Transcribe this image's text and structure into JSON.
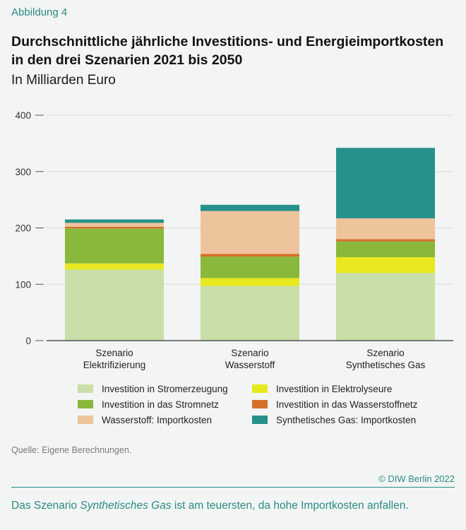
{
  "figure_label": "Abbildung 4",
  "title": "Durchschnittliche jährliche Investitions- und Energieimportkosten in den drei Szenarien 2021 bis 2050",
  "subtitle": "In Milliarden Euro",
  "source": "Quelle: Eigene Berechnungen.",
  "copyright": "© DIW Berlin 2022",
  "caption": {
    "before": "Das Szenario ",
    "emphasis": "Synthetisches Gas",
    "after": " ist am teuersten, da hohe Importkosten anfallen."
  },
  "colors": {
    "Investition in Stromerzeugung": "#c9dea8",
    "Investition in Elektrolyseure": "#e8e820",
    "Investition in das Stromnetz": "#8ab83a",
    "Investition in das Wasserstoffnetz": "#d4702a",
    "Wasserstoff: Importkosten": "#eec49c",
    "Synthetisches Gas: Importkosten": "#25918a"
  },
  "legend": [
    "Investition in Stromerzeugung",
    "Investition in Elektrolyseure",
    "Investition in das Stromnetz",
    "Investition in das Wasserstoffnetz",
    "Wasserstoff: Importkosten",
    "Synthetisches Gas: Importkosten"
  ],
  "chart_data": {
    "type": "bar",
    "stacked": true,
    "categories": [
      [
        "Szenario",
        "Elektrifizierung"
      ],
      [
        "Szenario",
        "Wasserstoff"
      ],
      [
        "Szenario",
        "Synthetisches Gas"
      ]
    ],
    "series": [
      {
        "name": "Investition in Stromerzeugung",
        "values": [
          126,
          97,
          120
        ]
      },
      {
        "name": "Investition in Elektrolyseure",
        "values": [
          11,
          14,
          28
        ]
      },
      {
        "name": "Investition in das Stromnetz",
        "values": [
          62,
          38,
          28
        ]
      },
      {
        "name": "Investition in das Wasserstoffnetz",
        "values": [
          3,
          5,
          4
        ]
      },
      {
        "name": "Wasserstoff: Importkosten",
        "values": [
          7,
          76,
          37
        ]
      },
      {
        "name": "Synthetisches Gas: Importkosten",
        "values": [
          6,
          11,
          125
        ]
      }
    ],
    "ylim": [
      0,
      400
    ],
    "yticks": [
      0,
      100,
      200,
      300,
      400
    ],
    "xlabel": "",
    "ylabel": "",
    "grid": true
  }
}
